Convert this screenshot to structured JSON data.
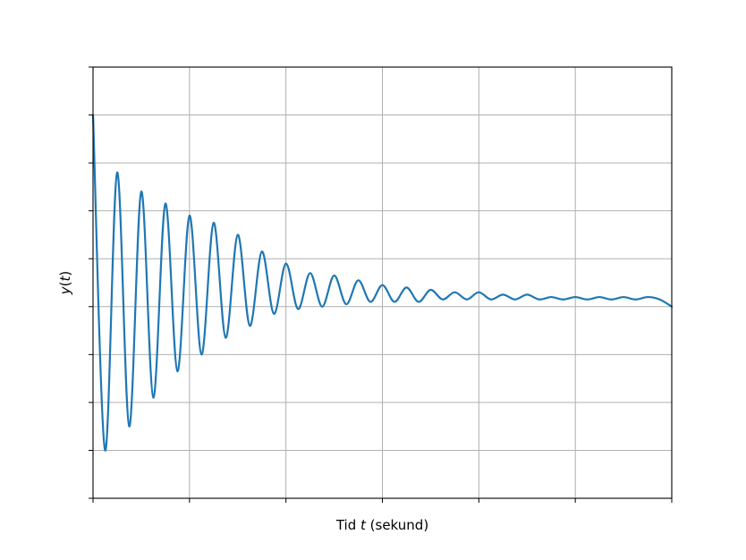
{
  "chart_data": {
    "type": "line",
    "title": "",
    "xlabel": "Tid t (sekund)",
    "xlabel_parts": {
      "prefix": "Tid ",
      "var": "t",
      "suffix": " (sekund)"
    },
    "ylabel": "y(t)",
    "ylabel_parts": {
      "var": "y",
      "open": "(",
      "arg": "t",
      "close": ")"
    },
    "grid": true,
    "legend": "none",
    "tick_labels_visible": false,
    "x_ticks": 7,
    "y_ticks": 10,
    "xlim": [
      0,
      12
    ],
    "ylim": [
      -0.8,
      1.0
    ],
    "series": [
      {
        "color": "#1f77b4",
        "x": [
          0,
          0.25,
          0.5,
          0.75,
          1.0,
          1.25,
          1.5,
          1.75,
          2.0,
          2.25,
          2.5,
          2.75,
          3.0,
          3.25,
          3.5,
          3.75,
          4.0,
          4.25,
          4.5,
          4.75,
          5.0,
          5.25,
          5.5,
          5.75,
          6.0,
          6.25,
          6.5,
          6.75,
          7.0,
          7.25,
          7.5,
          7.75,
          8.0,
          8.25,
          8.5,
          8.75,
          9.0,
          9.25,
          9.5,
          9.75,
          10.0,
          10.25,
          10.5,
          10.75,
          11.0,
          11.25,
          11.5,
          11.75,
          12.0
        ],
        "y": [
          0.8,
          -0.6,
          0.56,
          -0.5,
          0.48,
          -0.38,
          0.43,
          -0.27,
          0.38,
          -0.2,
          0.35,
          -0.13,
          0.3,
          -0.08,
          0.23,
          -0.03,
          0.18,
          -0.01,
          0.14,
          0.0,
          0.13,
          0.01,
          0.11,
          0.02,
          0.09,
          0.02,
          0.08,
          0.02,
          0.07,
          0.03,
          0.06,
          0.03,
          0.06,
          0.03,
          0.05,
          0.03,
          0.05,
          0.03,
          0.04,
          0.03,
          0.04,
          0.03,
          0.04,
          0.03,
          0.04,
          0.03,
          0.04,
          0.03,
          0.0
        ]
      }
    ]
  }
}
